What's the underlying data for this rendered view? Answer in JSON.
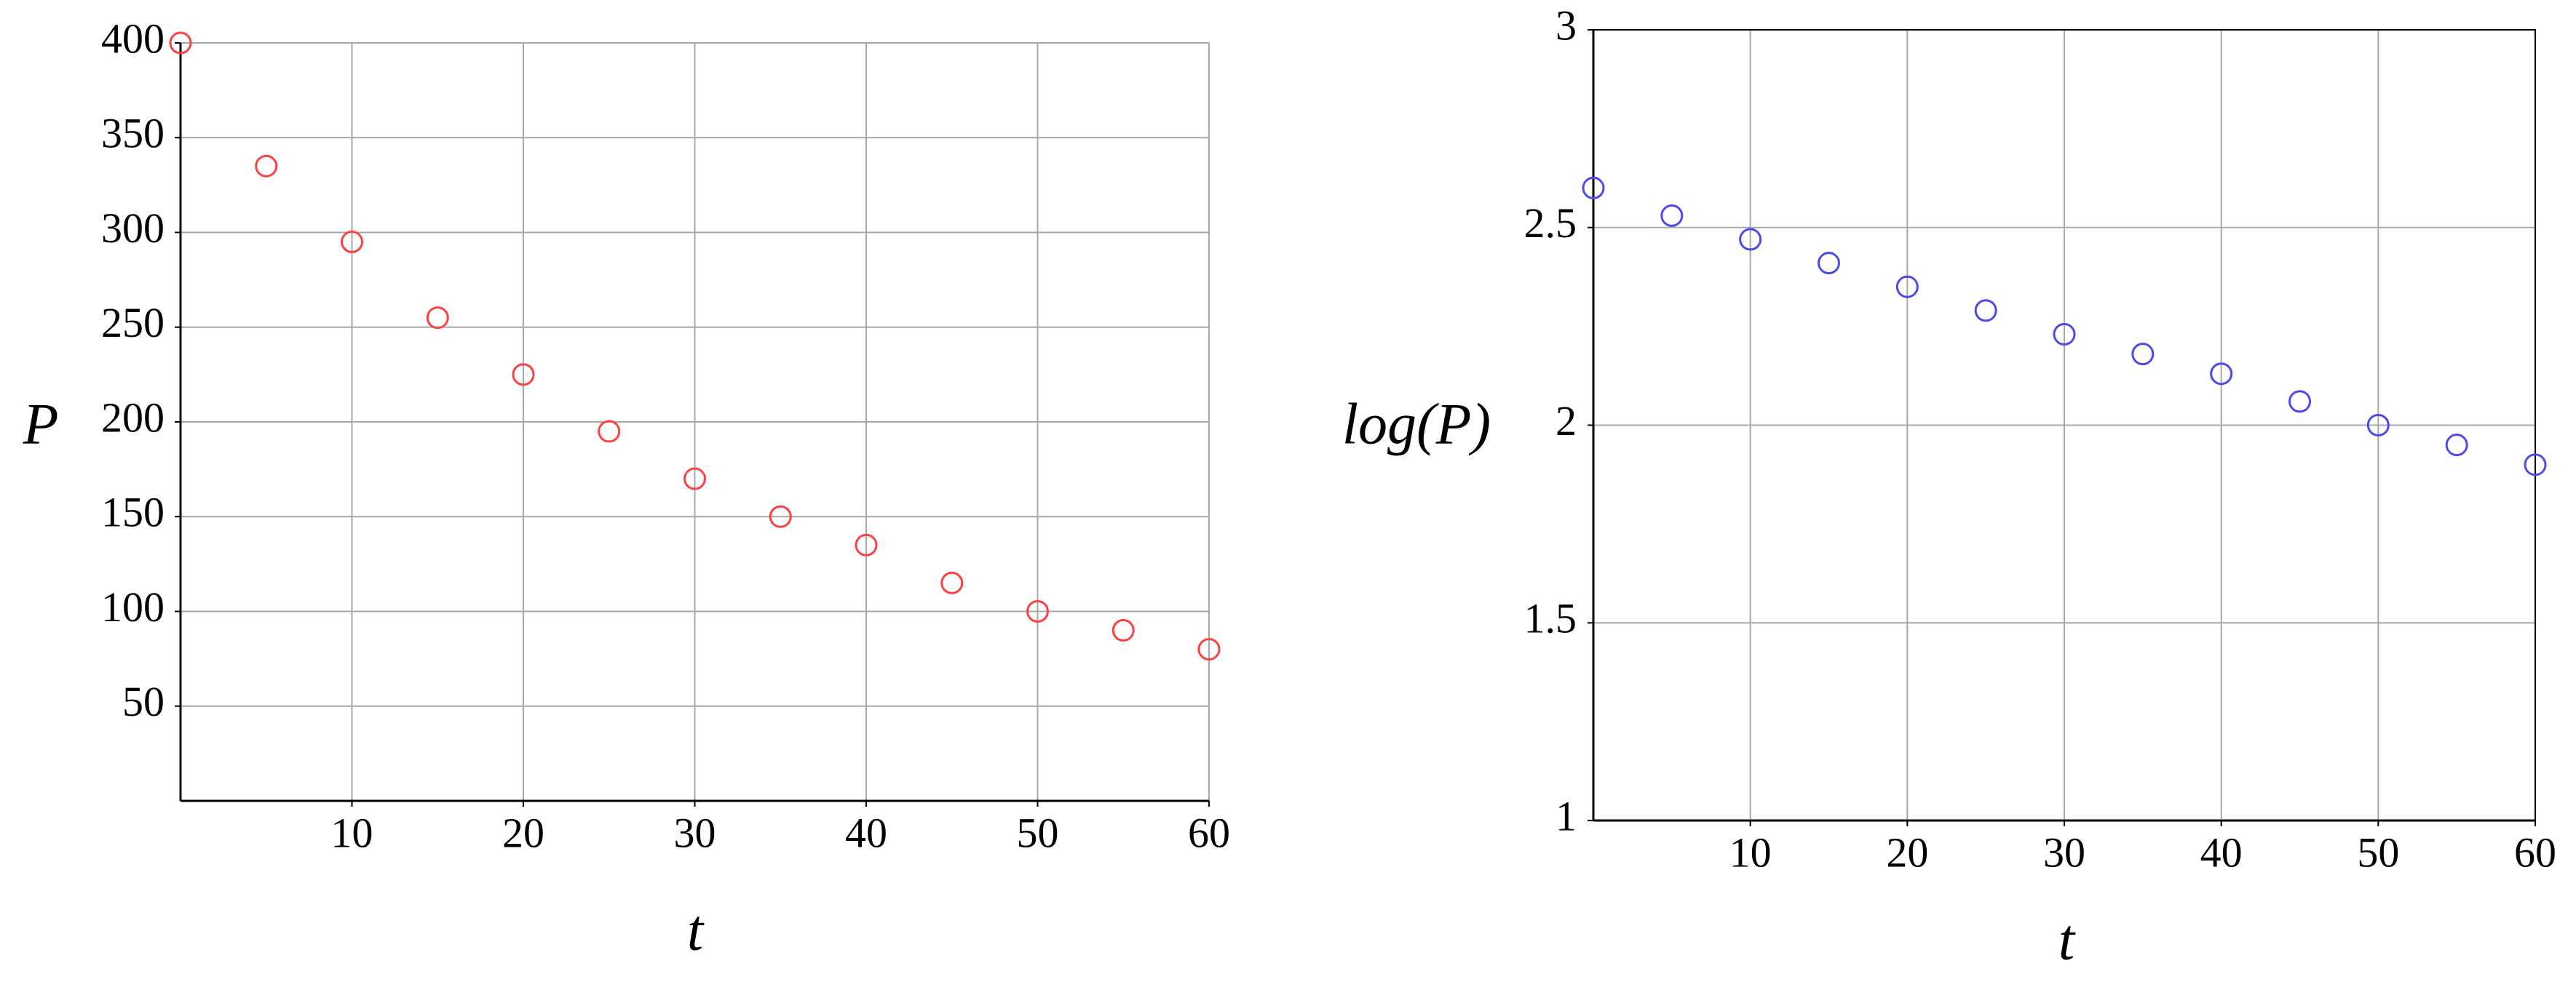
{
  "chart_data": [
    {
      "type": "scatter",
      "x_label": "t",
      "y_label": "P",
      "x": [
        0,
        5,
        10,
        15,
        20,
        25,
        30,
        35,
        40,
        45,
        50,
        55,
        60
      ],
      "values": [
        400,
        335,
        295,
        255,
        225,
        195,
        170,
        150,
        135,
        115,
        100,
        90,
        80
      ],
      "color": "#ff4040",
      "xlim": [
        0,
        60
      ],
      "xticks": [
        10,
        20,
        30,
        40,
        50,
        60
      ],
      "ylim": [
        0,
        400
      ],
      "yticks": [
        50,
        100,
        150,
        200,
        250,
        300,
        350,
        400
      ],
      "grid": true,
      "frame": false
    },
    {
      "type": "scatter",
      "x_label": "t",
      "y_label": "log(P)",
      "x": [
        0,
        5,
        10,
        15,
        20,
        25,
        30,
        35,
        40,
        45,
        50,
        55,
        60
      ],
      "values": [
        2.6,
        2.53,
        2.47,
        2.41,
        2.35,
        2.29,
        2.23,
        2.18,
        2.13,
        2.06,
        2.0,
        1.95,
        1.9
      ],
      "color": "#4a4aee",
      "xlim": [
        0,
        60
      ],
      "xticks": [
        10,
        20,
        30,
        40,
        50,
        60
      ],
      "ylim": [
        1,
        3
      ],
      "yticks": [
        1,
        1.5,
        2,
        2.5,
        3
      ],
      "grid": true,
      "frame": true
    }
  ]
}
